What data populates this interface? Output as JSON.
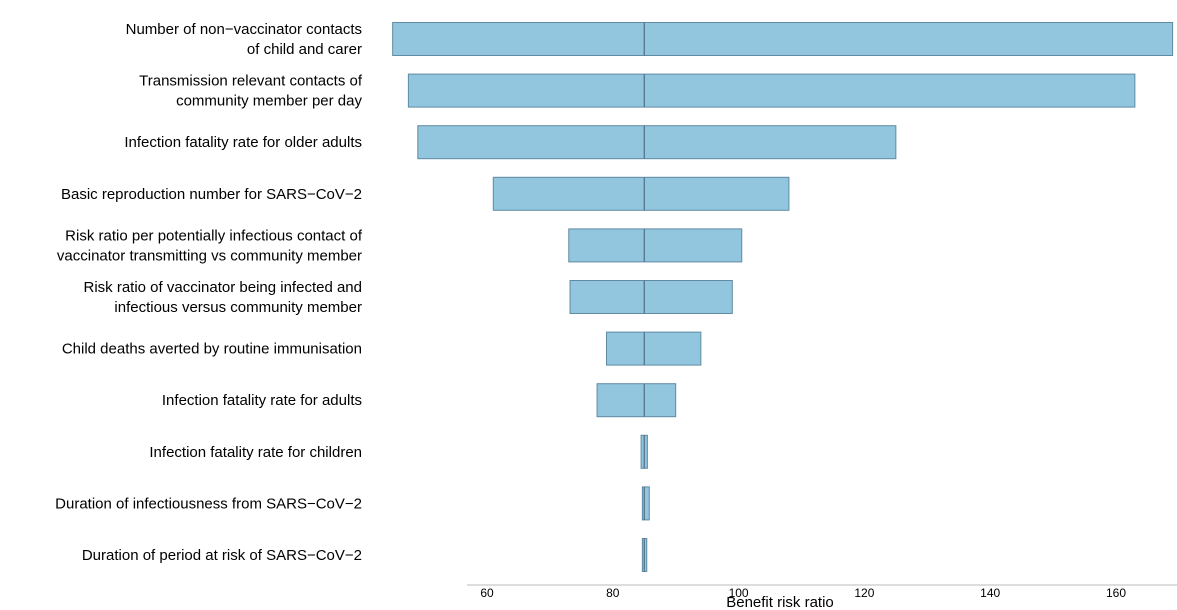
{
  "chart_data": {
    "type": "bar",
    "orientation": "horizontal",
    "subtype": "tornado",
    "xlabel": "Benefit risk ratio",
    "xticks": [
      60,
      80,
      100,
      120,
      140,
      160
    ],
    "xlim": [
      45,
      169
    ],
    "baseline": 85,
    "bar_color": "#92c5de",
    "bar_edge_color": "#5f8ba3",
    "rows": [
      {
        "label": [
          "Number of non−vaccinator contacts",
          "of child and carer"
        ],
        "low": 45,
        "high": 169
      },
      {
        "label": [
          "Transmission relevant contacts of",
          "community member per day"
        ],
        "low": 47.5,
        "high": 163
      },
      {
        "label": [
          "Infection fatality rate for older adults"
        ],
        "low": 49,
        "high": 125
      },
      {
        "label": [
          "Basic reproduction number for SARS−CoV−2"
        ],
        "low": 61,
        "high": 108
      },
      {
        "label": [
          "Risk ratio per potentially infectious contact of",
          "vaccinator transmitting vs community member"
        ],
        "low": 73,
        "high": 100.5
      },
      {
        "label": [
          "Risk ratio of vaccinator being infected and",
          "infectious versus community member"
        ],
        "low": 73.2,
        "high": 99
      },
      {
        "label": [
          "Child deaths averted by routine immunisation"
        ],
        "low": 79,
        "high": 94
      },
      {
        "label": [
          "Infection fatality rate for adults"
        ],
        "low": 77.5,
        "high": 90
      },
      {
        "label": [
          "Infection fatality rate for children"
        ],
        "low": 84.5,
        "high": 85.5
      },
      {
        "label": [
          "Duration of infectiousness from SARS−CoV−2"
        ],
        "low": 84.7,
        "high": 85.8
      },
      {
        "label": [
          "Duration of period at risk of SARS−CoV−2"
        ],
        "low": 84.7,
        "high": 85.4
      }
    ]
  }
}
